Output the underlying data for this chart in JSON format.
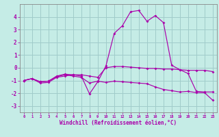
{
  "xlabel": "Windchill (Refroidissement éolien,°C)",
  "xlim": [
    -0.5,
    23.5
  ],
  "ylim": [
    -3.5,
    5.0
  ],
  "yticks": [
    -3,
    -2,
    -1,
    0,
    1,
    2,
    3,
    4
  ],
  "xticks": [
    0,
    1,
    2,
    3,
    4,
    5,
    6,
    7,
    8,
    9,
    10,
    11,
    12,
    13,
    14,
    15,
    16,
    17,
    18,
    19,
    20,
    21,
    22,
    23
  ],
  "bg_color": "#c5ece6",
  "grid_color": "#a0ccca",
  "line_color": "#aa00aa",
  "line1_y": [
    -1.0,
    -0.85,
    -1.1,
    -1.05,
    -0.7,
    -0.55,
    -0.65,
    -0.75,
    -1.2,
    -1.05,
    -1.15,
    -1.05,
    -1.1,
    -1.15,
    -1.2,
    -1.25,
    -1.5,
    -1.7,
    -1.8,
    -1.9,
    -1.85,
    -1.95,
    -1.95,
    -2.55
  ],
  "line2_y": [
    -1.0,
    -0.85,
    -1.1,
    -1.05,
    -0.65,
    -0.5,
    -0.55,
    -0.55,
    -0.65,
    -0.75,
    0.0,
    0.1,
    0.1,
    0.05,
    0.0,
    -0.05,
    -0.05,
    -0.1,
    -0.1,
    -0.15,
    -0.2,
    -0.2,
    -0.2,
    -0.3
  ],
  "line3_y": [
    -1.0,
    -0.85,
    -1.2,
    -1.15,
    -0.75,
    -0.65,
    -0.55,
    -0.65,
    -2.05,
    -1.1,
    0.15,
    2.7,
    3.3,
    4.4,
    4.5,
    3.65,
    4.1,
    3.55,
    0.2,
    -0.15,
    -0.45,
    -1.85,
    -1.9,
    -1.9
  ]
}
